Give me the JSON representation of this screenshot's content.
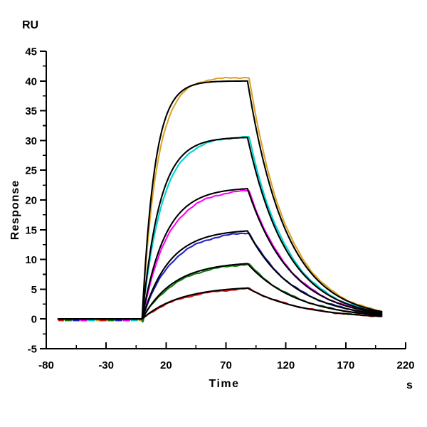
{
  "figure": {
    "title": "",
    "background_color": "#FFFFFF"
  },
  "chart_data": {
    "type": "line",
    "subtype": "spr-sensorgram",
    "title": "",
    "xlabel": "Time",
    "x_unit": "s",
    "ylabel": "Response",
    "y_unit": "RU",
    "xlim": [
      -80,
      220
    ],
    "ylim": [
      -5,
      45
    ],
    "x_ticks": [
      -80,
      -30,
      20,
      70,
      120,
      170,
      220
    ],
    "y_ticks": [
      -5,
      0,
      5,
      10,
      15,
      20,
      25,
      30,
      35,
      40,
      45
    ],
    "x_minor_step": 25,
    "y_minor_step": 2.5,
    "grid": false,
    "legend": "none",
    "fit_color": "#000000",
    "phases": {
      "baseline_start_s": -70,
      "association_start_s": 0,
      "dissociation_start_s": 88,
      "end_s": 200
    },
    "series": [
      {
        "name": "curve-1-highest",
        "color": "#DBA426",
        "plateau_ru": 40.6,
        "fit_plateau_ru": 40.0,
        "k_obs": 0.08,
        "fit_k_obs": 0.095,
        "k_off": 0.031
      },
      {
        "name": "curve-2",
        "color": "#00D2D2",
        "plateau_ru": 30.6,
        "fit_plateau_ru": 30.5,
        "k_obs": 0.06,
        "fit_k_obs": 0.068,
        "k_off": 0.03
      },
      {
        "name": "curve-3",
        "color": "#FF00FF",
        "plateau_ru": 21.6,
        "fit_plateau_ru": 21.9,
        "k_obs": 0.047,
        "fit_k_obs": 0.052,
        "k_off": 0.028
      },
      {
        "name": "curve-4",
        "color": "#2020CC",
        "plateau_ru": 14.5,
        "fit_plateau_ru": 14.8,
        "k_obs": 0.041,
        "fit_k_obs": 0.045,
        "k_off": 0.026
      },
      {
        "name": "curve-5",
        "color": "#0E7A0E",
        "plateau_ru": 9.2,
        "fit_plateau_ru": 9.3,
        "k_obs": 0.035,
        "fit_k_obs": 0.038,
        "k_off": 0.024
      },
      {
        "name": "curve-6-lowest",
        "color": "#DD1111",
        "plateau_ru": 5.1,
        "fit_plateau_ru": 5.2,
        "k_obs": 0.03,
        "fit_k_obs": 0.032,
        "k_off": 0.022
      }
    ]
  }
}
